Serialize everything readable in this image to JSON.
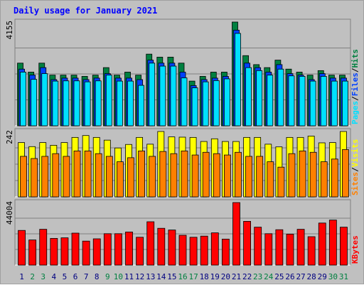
{
  "title": "Daily usage for January 2021",
  "colors": {
    "background": "#c0c0c0",
    "panel": "#c0c0c0",
    "hits": "#008040",
    "files": "#0040ff",
    "pages": "#00e0ff",
    "visits": "#ffff00",
    "sites": "#ff8000",
    "kbytes": "#ff0000",
    "title_text": "#0000ff",
    "weekday_label": "#000080",
    "weekend_label": "#008040",
    "gridline": "#808080"
  },
  "chart_data": [
    {
      "type": "bar",
      "name": "hits-files-pages",
      "ymax_label": "4155",
      "ylim": [
        0,
        4155
      ],
      "legend": [
        {
          "label": "Pages",
          "color": "#00e0ff"
        },
        {
          "label": "/",
          "color": "#000000"
        },
        {
          "label": "Files",
          "color": "#0040ff"
        },
        {
          "label": "/",
          "color": "#000000"
        },
        {
          "label": "Hits",
          "color": "#008040"
        }
      ],
      "series": [
        {
          "name": "Hits",
          "values": [
            2510,
            2150,
            2510,
            2030,
            2030,
            2030,
            1980,
            2030,
            2330,
            2030,
            2150,
            2030,
            2870,
            2750,
            2750,
            2510,
            1790,
            1980,
            2150,
            2150,
            4155,
            2810,
            2450,
            2330,
            2630,
            2270,
            2150,
            2030,
            2210,
            2030,
            2030
          ]
        },
        {
          "name": "Files",
          "values": [
            2270,
            2030,
            2330,
            1850,
            1910,
            1910,
            1850,
            1910,
            2090,
            1910,
            1910,
            1850,
            2630,
            2510,
            2510,
            2150,
            1610,
            1850,
            1910,
            1980,
            3830,
            2510,
            2330,
            2150,
            2450,
            2090,
            2030,
            1850,
            2090,
            1910,
            1910
          ]
        },
        {
          "name": "Pages",
          "values": [
            2150,
            1860,
            2090,
            1790,
            1800,
            1800,
            1760,
            1800,
            2030,
            1790,
            1790,
            1620,
            2510,
            2390,
            2390,
            1920,
            1520,
            1760,
            1810,
            1880,
            3700,
            2330,
            2210,
            2030,
            2270,
            2000,
            1980,
            1790,
            1980,
            1790,
            1790
          ]
        }
      ]
    },
    {
      "type": "bar",
      "name": "visits-sites",
      "ymax_label": "242",
      "ylim": [
        0,
        242
      ],
      "legend": [
        {
          "label": "Sites",
          "color": "#ff8000"
        },
        {
          "label": "/",
          "color": "#000000"
        },
        {
          "label": "Visits",
          "color": "#ffff00"
        }
      ],
      "series": [
        {
          "name": "Visits",
          "values": [
            201,
            186,
            201,
            191,
            201,
            220,
            227,
            220,
            210,
            181,
            194,
            220,
            195,
            242,
            222,
            221,
            220,
            205,
            215,
            205,
            205,
            220,
            220,
            195,
            185,
            220,
            220,
            225,
            200,
            201,
            242
          ]
        },
        {
          "name": "Sites",
          "values": [
            150,
            142,
            150,
            160,
            150,
            170,
            170,
            160,
            150,
            130,
            145,
            170,
            150,
            168,
            160,
            170,
            155,
            165,
            160,
            155,
            165,
            150,
            150,
            130,
            110,
            160,
            170,
            165,
            130,
            140,
            175
          ]
        }
      ]
    },
    {
      "type": "bar",
      "name": "kbytes",
      "ymax_label": "44004",
      "ylim": [
        0,
        44004
      ],
      "legend": [
        {
          "label": "KBytes",
          "color": "#ff0000"
        }
      ],
      "series": [
        {
          "name": "KBytes",
          "values": [
            24400,
            17700,
            25200,
            18800,
            19200,
            22500,
            16900,
            18500,
            22100,
            22100,
            23300,
            19600,
            30500,
            25900,
            24700,
            21000,
            19600,
            20400,
            22700,
            18300,
            44004,
            30800,
            26700,
            22100,
            24900,
            21800,
            25200,
            20000,
            29600,
            31700,
            26700
          ]
        }
      ]
    }
  ],
  "days": [
    {
      "label": "1",
      "weekend": false
    },
    {
      "label": "2",
      "weekend": true
    },
    {
      "label": "3",
      "weekend": true
    },
    {
      "label": "4",
      "weekend": false
    },
    {
      "label": "5",
      "weekend": false
    },
    {
      "label": "6",
      "weekend": false
    },
    {
      "label": "7",
      "weekend": false
    },
    {
      "label": "8",
      "weekend": false
    },
    {
      "label": "9",
      "weekend": true
    },
    {
      "label": "10",
      "weekend": true
    },
    {
      "label": "11",
      "weekend": false
    },
    {
      "label": "12",
      "weekend": false
    },
    {
      "label": "13",
      "weekend": false
    },
    {
      "label": "14",
      "weekend": false
    },
    {
      "label": "15",
      "weekend": false
    },
    {
      "label": "16",
      "weekend": true
    },
    {
      "label": "17",
      "weekend": true
    },
    {
      "label": "18",
      "weekend": false
    },
    {
      "label": "19",
      "weekend": false
    },
    {
      "label": "20",
      "weekend": false
    },
    {
      "label": "21",
      "weekend": false
    },
    {
      "label": "22",
      "weekend": false
    },
    {
      "label": "23",
      "weekend": true
    },
    {
      "label": "24",
      "weekend": true
    },
    {
      "label": "25",
      "weekend": false
    },
    {
      "label": "26",
      "weekend": false
    },
    {
      "label": "27",
      "weekend": false
    },
    {
      "label": "28",
      "weekend": false
    },
    {
      "label": "29",
      "weekend": false
    },
    {
      "label": "30",
      "weekend": true
    },
    {
      "label": "31",
      "weekend": true
    }
  ]
}
